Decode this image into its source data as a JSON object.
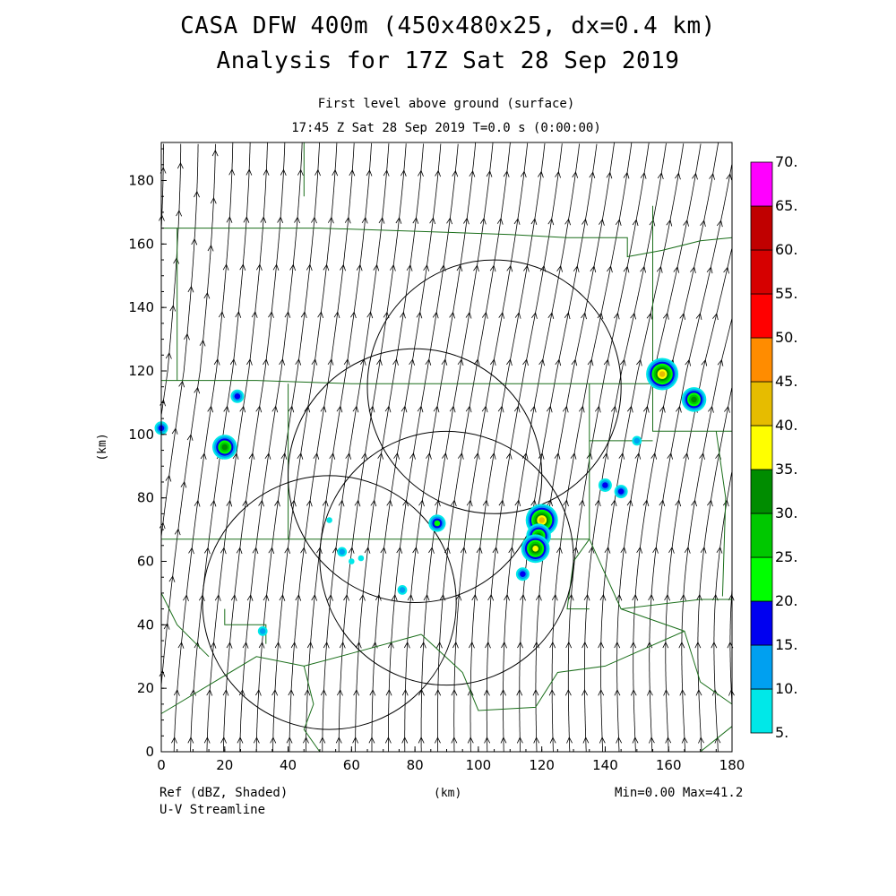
{
  "header": {
    "title_line1": "CASA DFW 400m (450x480x25, dx=0.4 km)",
    "title_line2": "Analysis for 17Z Sat 28 Sep 2019",
    "subtitle_line1": "First level above ground (surface)",
    "subtitle_line2": "17:45 Z Sat 28 Sep 2019    T=0.0 s (0:00:00)"
  },
  "footer": {
    "field_label": "Ref (dBZ, Shaded)",
    "vector_label": "U-V Streamline",
    "minmax": "Min=0.00 Max=41.2"
  },
  "chart_data": {
    "type": "heatmap",
    "xlabel": "(km)",
    "ylabel": "(km)",
    "xlim": [
      0,
      180
    ],
    "ylim": [
      0,
      192
    ],
    "x_ticks": [
      "0",
      "20",
      "40",
      "60",
      "80",
      "100",
      "120",
      "140",
      "160",
      "180"
    ],
    "y_ticks": [
      "0",
      "20",
      "40",
      "60",
      "80",
      "100",
      "120",
      "140",
      "160",
      "180"
    ],
    "colorbar": {
      "levels": [
        "5.",
        "10.",
        "15.",
        "20.",
        "25.",
        "30.",
        "35.",
        "40.",
        "45.",
        "50.",
        "55.",
        "60.",
        "65.",
        "70."
      ],
      "colors": [
        "#00e8e8",
        "#00a0f0",
        "#0000f0",
        "#00ff00",
        "#00c800",
        "#008c00",
        "#ffff00",
        "#e6bc00",
        "#ff8c00",
        "#ff0000",
        "#d60000",
        "#c00000",
        "#ff00ff"
      ]
    },
    "radar_rings": [
      {
        "center": [
          53,
          47
        ],
        "radius": 40
      },
      {
        "center": [
          80,
          87
        ],
        "radius": 40
      },
      {
        "center": [
          90,
          61
        ],
        "radius": 40
      },
      {
        "center": [
          105,
          115
        ],
        "radius": 40
      }
    ],
    "echoes": [
      {
        "x": 158,
        "y": 119,
        "dbz": 40
      },
      {
        "x": 168,
        "y": 111,
        "dbz": 30
      },
      {
        "x": 24,
        "y": 112,
        "dbz": 15
      },
      {
        "x": 20,
        "y": 96,
        "dbz": 30
      },
      {
        "x": 0,
        "y": 102,
        "dbz": 15
      },
      {
        "x": 120,
        "y": 73,
        "dbz": 40
      },
      {
        "x": 119,
        "y": 68,
        "dbz": 30
      },
      {
        "x": 118,
        "y": 64,
        "dbz": 35
      },
      {
        "x": 87,
        "y": 72,
        "dbz": 20
      },
      {
        "x": 114,
        "y": 56,
        "dbz": 15
      },
      {
        "x": 145,
        "y": 82,
        "dbz": 15
      },
      {
        "x": 140,
        "y": 84,
        "dbz": 15
      },
      {
        "x": 150,
        "y": 98,
        "dbz": 10
      },
      {
        "x": 57,
        "y": 63,
        "dbz": 10
      },
      {
        "x": 76,
        "y": 51,
        "dbz": 10
      },
      {
        "x": 32,
        "y": 38,
        "dbz": 10
      },
      {
        "x": 63,
        "y": 61,
        "dbz": 5
      },
      {
        "x": 60,
        "y": 60,
        "dbz": 5
      },
      {
        "x": 53,
        "y": 73,
        "dbz": 5
      }
    ],
    "stats": {
      "min": 0.0,
      "max": 41.2
    }
  }
}
